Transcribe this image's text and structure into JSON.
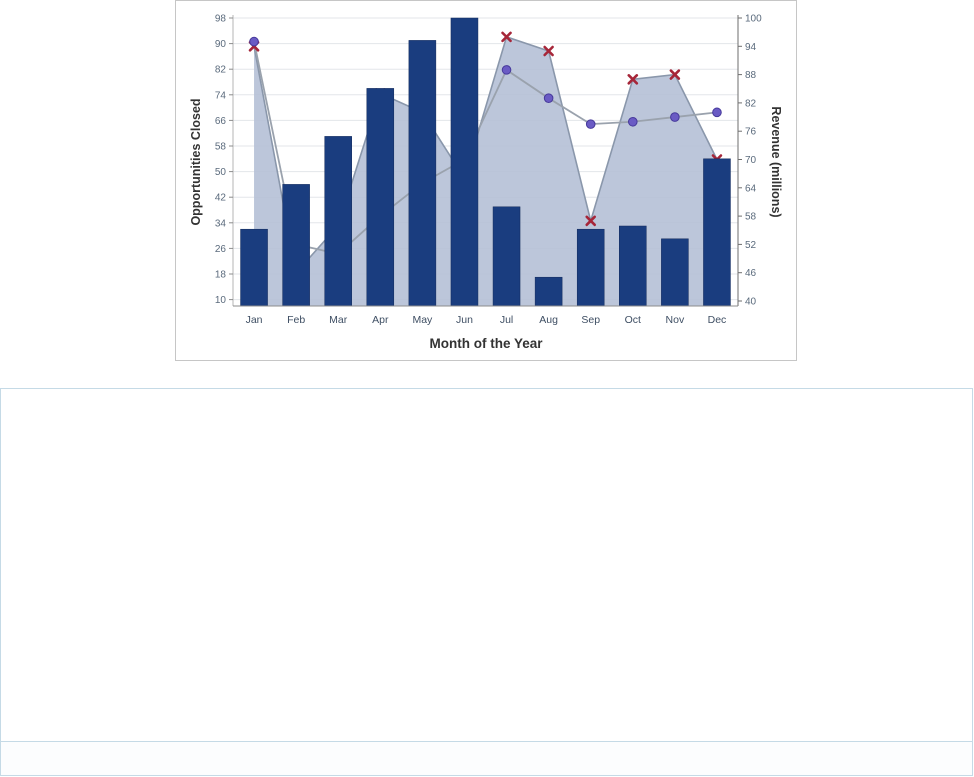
{
  "chart_data": {
    "type": "combo",
    "categories": [
      "Jan",
      "Feb",
      "Mar",
      "Apr",
      "May",
      "Jun",
      "Jul",
      "Aug",
      "Sep",
      "Oct",
      "Nov",
      "Dec"
    ],
    "xlabel": "Month of the Year",
    "grid": true,
    "legend": "none",
    "left_axis": {
      "label": "Opportunities Closed",
      "ticks": [
        98,
        90,
        82,
        74,
        66,
        58,
        50,
        42,
        34,
        26,
        18,
        10
      ],
      "min": 8,
      "max": 98
    },
    "right_axis": {
      "label": "Revenue (millions)",
      "ticks": [
        100,
        94,
        88,
        82,
        76,
        70,
        64,
        58,
        52,
        46,
        40
      ],
      "min": 40,
      "max": 100
    },
    "series": [
      {
        "id": "opportunities-closed-bars",
        "type": "bar",
        "axis": "left",
        "color": "#1a3d7f",
        "values": [
          32,
          46,
          61,
          76,
          91,
          98,
          39,
          17,
          32,
          33,
          29,
          54
        ]
      },
      {
        "id": "revenue-area",
        "type": "area",
        "axis": "right",
        "fill": "#b5c0d6",
        "stroke": "#8a97ab",
        "marker": "x",
        "marker_color": "#a62639",
        "values": [
          94,
          46,
          56,
          84,
          80,
          66,
          96,
          93,
          57,
          87,
          88,
          70
        ]
      },
      {
        "id": "revenue-line",
        "type": "line",
        "axis": "right",
        "stroke": "#9aa2ad",
        "marker": "circle",
        "marker_color": "#6a5bc4",
        "marker_stroke": "#46399b",
        "values": [
          95,
          52,
          50,
          58,
          65,
          70,
          89,
          83,
          77.5,
          78,
          79,
          80
        ]
      }
    ],
    "colors": {
      "gridline": "#e3e6ea",
      "axis_line": "#8c8c8c",
      "tick_label": "#5a6a7c",
      "month_label": "#3e4e63"
    }
  },
  "panels": {
    "chart_panel_border": "#c6c6c6",
    "report_area_border": "#c5dae6",
    "footer_border": "#c5dae6"
  }
}
